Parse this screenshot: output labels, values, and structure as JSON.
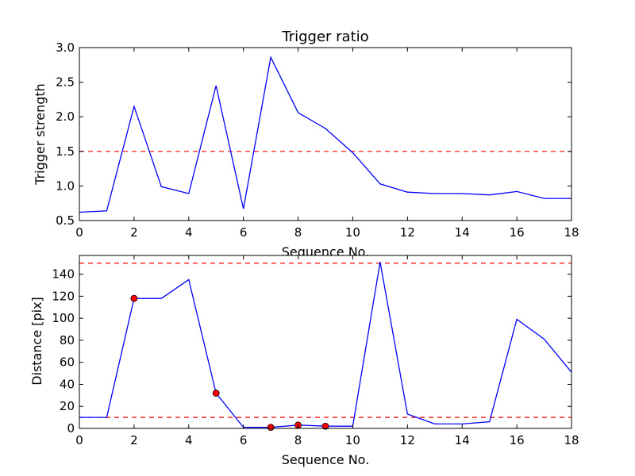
{
  "chart_data": [
    {
      "type": "line",
      "title": "Trigger ratio",
      "xlabel": "Sequence No.",
      "ylabel": "Trigger strength",
      "xlim": [
        0,
        18
      ],
      "ylim": [
        0.5,
        3.0
      ],
      "xticks": [
        "0",
        "2",
        "4",
        "6",
        "8",
        "10",
        "12",
        "14",
        "16",
        "18"
      ],
      "yticks": [
        "0.5",
        "1.0",
        "1.5",
        "2.0",
        "2.5",
        "3.0"
      ],
      "grid": false,
      "series": [
        {
          "color": "#0000ff",
          "x": [
            0,
            1,
            2,
            3,
            4,
            5,
            6,
            7,
            8,
            9,
            10,
            11,
            12,
            13,
            14,
            15,
            16,
            17,
            18
          ],
          "values": [
            0.62,
            0.64,
            2.15,
            0.99,
            0.89,
            2.45,
            0.67,
            2.86,
            2.06,
            1.83,
            1.48,
            1.03,
            0.91,
            0.89,
            0.89,
            0.87,
            0.92,
            0.82,
            0.82
          ]
        }
      ],
      "hlines": [
        {
          "y": 1.5,
          "color": "#ff0000",
          "style": "dashed"
        }
      ]
    },
    {
      "type": "line",
      "title": "",
      "xlabel": "Sequence No.",
      "ylabel": "Distance [pix]",
      "xlim": [
        0,
        18
      ],
      "ylim": [
        0,
        157
      ],
      "xticks": [
        "0",
        "2",
        "4",
        "6",
        "8",
        "10",
        "12",
        "14",
        "16",
        "18"
      ],
      "yticks": [
        "0",
        "20",
        "40",
        "60",
        "80",
        "100",
        "120",
        "140"
      ],
      "grid": false,
      "series": [
        {
          "color": "#0000ff",
          "x": [
            0,
            1,
            2,
            3,
            4,
            5,
            6,
            7,
            8,
            9,
            10,
            11,
            12,
            13,
            14,
            15,
            16,
            17,
            18
          ],
          "values": [
            10,
            10,
            118,
            118,
            135,
            32,
            1,
            1,
            3,
            2,
            2,
            151,
            13,
            4,
            4,
            6,
            99,
            81,
            51
          ]
        }
      ],
      "markers": {
        "color": "#ff0000",
        "x": [
          2,
          5,
          7,
          8,
          9
        ],
        "values": [
          118,
          32,
          1,
          3,
          2
        ]
      },
      "hlines": [
        {
          "y": 150,
          "color": "#ff0000",
          "style": "dashed"
        },
        {
          "y": 10,
          "color": "#ff0000",
          "style": "dashed"
        }
      ]
    }
  ]
}
